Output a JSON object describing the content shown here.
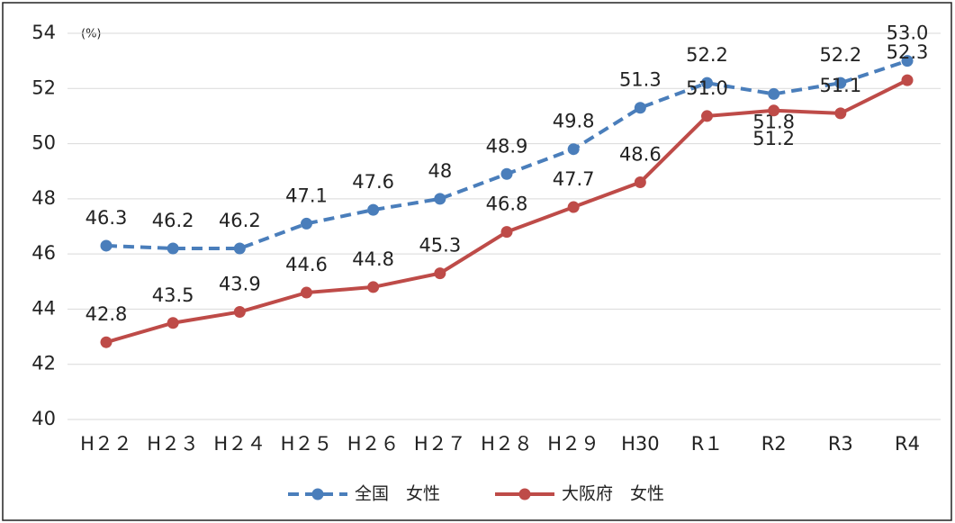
{
  "chart_data": {
    "type": "line",
    "annotation": "(%)",
    "categories": [
      "H２２",
      "H２３",
      "H２４",
      "H２５",
      "H２６",
      "H２７",
      "H２８",
      "H２９",
      "H30",
      "R１",
      "R2",
      "R3",
      "R4"
    ],
    "series": [
      {
        "name": "全国　女性",
        "color": "#4a7ebb",
        "dashed": true,
        "values": [
          46.3,
          46.2,
          46.2,
          47.1,
          47.6,
          48,
          48.9,
          49.8,
          51.3,
          52.2,
          51.8,
          52.2,
          53.0
        ],
        "value_labels": [
          "46.3",
          "46.2",
          "46.2",
          "47.1",
          "47.6",
          "48",
          "48.9",
          "49.8",
          "51.3",
          "52.2",
          "51.8",
          "52.2",
          "53.0"
        ]
      },
      {
        "name": "大阪府　女性",
        "color": "#be4b48",
        "dashed": false,
        "values": [
          42.8,
          43.5,
          43.9,
          44.6,
          44.8,
          45.3,
          46.8,
          47.7,
          48.6,
          51.0,
          51.2,
          51.1,
          52.3
        ],
        "value_labels": [
          "42.8",
          "43.5",
          "43.9",
          "44.6",
          "44.8",
          "45.3",
          "46.8",
          "47.7",
          "48.6",
          "51.0",
          "51.2",
          "51.1",
          "52.3"
        ]
      }
    ],
    "ylim": [
      40,
      54
    ],
    "yticks": [
      40,
      42,
      44,
      46,
      48,
      50,
      52,
      54
    ],
    "grid": true,
    "legend": "bottom"
  }
}
